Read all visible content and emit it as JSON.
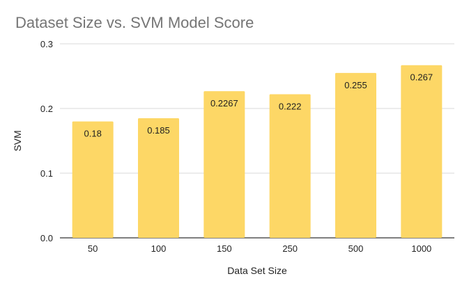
{
  "chart_data": {
    "type": "bar",
    "title": "Dataset Size vs. SVM Model Score",
    "xlabel": "Data Set Size",
    "ylabel": "SVM",
    "categories": [
      "50",
      "100",
      "150",
      "250",
      "500",
      "1000"
    ],
    "values": [
      0.18,
      0.185,
      0.2267,
      0.222,
      0.255,
      0.267
    ],
    "value_labels": [
      "0.18",
      "0.185",
      "0.2267",
      "0.222",
      "0.255",
      "0.267"
    ],
    "ylim": [
      0,
      0.3
    ],
    "yticks": [
      0.0,
      0.1,
      0.2,
      0.3
    ],
    "ytick_labels": [
      "0.0",
      "0.1",
      "0.2",
      "0.3"
    ],
    "grid": true,
    "legend": "none",
    "colors": {
      "bar": "#FDD766",
      "title": "#757575",
      "text": "#1f1f1f",
      "grid": "#d9d9d9",
      "axis": "#333333"
    }
  }
}
